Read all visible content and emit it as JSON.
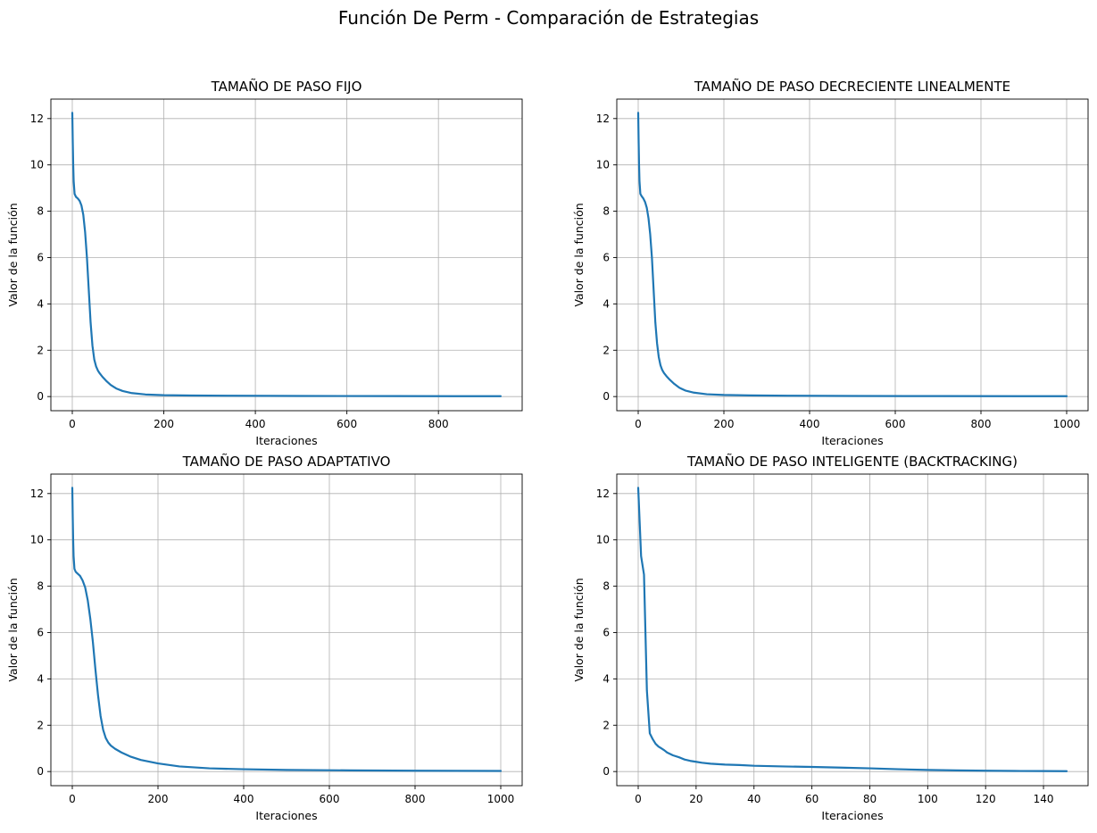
{
  "figure": {
    "suptitle": "Función De Perm - Comparación de Estrategias",
    "line_color": "#1f77b4",
    "grid_color": "#b0b0b0"
  },
  "chart_data": [
    {
      "type": "line",
      "title": "TAMAÑO DE PASO FIJO",
      "xlabel": "Iteraciones",
      "ylabel": "Valor de la función",
      "xlim": [
        -46.8,
        983
      ],
      "ylim": [
        -0.61,
        12.84
      ],
      "xticks": [
        0,
        200,
        400,
        600,
        800
      ],
      "yticks": [
        0,
        2,
        4,
        6,
        8,
        10,
        12
      ],
      "grid": true,
      "series": [
        {
          "x": [
            0,
            1,
            2,
            3,
            5,
            8,
            12,
            16,
            20,
            24,
            28,
            32,
            36,
            40,
            44,
            48,
            52,
            56,
            60,
            66,
            74,
            84,
            96,
            110,
            130,
            160,
            200,
            260,
            350,
            500,
            700,
            936
          ],
          "y": [
            12.25,
            11.0,
            10.0,
            9.3,
            8.75,
            8.62,
            8.55,
            8.45,
            8.25,
            7.85,
            7.1,
            6.0,
            4.6,
            3.2,
            2.2,
            1.6,
            1.3,
            1.12,
            1.0,
            0.85,
            0.68,
            0.5,
            0.35,
            0.24,
            0.15,
            0.09,
            0.06,
            0.045,
            0.035,
            0.025,
            0.02,
            0.015
          ]
        }
      ]
    },
    {
      "type": "line",
      "title": "TAMAÑO DE PASO DECRECIENTE LINEALMENTE",
      "xlabel": "Iteraciones",
      "ylabel": "Valor de la función",
      "xlim": [
        -50,
        1050
      ],
      "ylim": [
        -0.61,
        12.84
      ],
      "xticks": [
        0,
        200,
        400,
        600,
        800,
        1000
      ],
      "yticks": [
        0,
        2,
        4,
        6,
        8,
        10,
        12
      ],
      "grid": true,
      "series": [
        {
          "x": [
            0,
            1,
            2,
            3,
            5,
            8,
            12,
            16,
            20,
            24,
            28,
            32,
            36,
            40,
            44,
            48,
            52,
            56,
            60,
            66,
            74,
            84,
            96,
            110,
            130,
            160,
            200,
            260,
            350,
            500,
            700,
            1000
          ],
          "y": [
            12.25,
            11.0,
            10.0,
            9.3,
            8.75,
            8.65,
            8.55,
            8.4,
            8.15,
            7.7,
            7.0,
            6.0,
            4.6,
            3.2,
            2.3,
            1.7,
            1.35,
            1.15,
            1.02,
            0.88,
            0.72,
            0.55,
            0.38,
            0.26,
            0.17,
            0.1,
            0.07,
            0.05,
            0.035,
            0.025,
            0.02,
            0.015
          ]
        }
      ]
    },
    {
      "type": "line",
      "title": "TAMAÑO DE PASO ADAPTATIVO",
      "xlabel": "Iteraciones",
      "ylabel": "Valor de la función",
      "xlim": [
        -50,
        1050
      ],
      "ylim": [
        -0.61,
        12.84
      ],
      "xticks": [
        0,
        200,
        400,
        600,
        800,
        1000
      ],
      "yticks": [
        0,
        2,
        4,
        6,
        8,
        10,
        12
      ],
      "grid": true,
      "series": [
        {
          "x": [
            0,
            1,
            2,
            3,
            5,
            8,
            12,
            18,
            24,
            30,
            36,
            42,
            48,
            54,
            60,
            66,
            72,
            78,
            84,
            90,
            100,
            115,
            135,
            160,
            200,
            250,
            320,
            400,
            500,
            650,
            800,
            1000
          ],
          "y": [
            12.25,
            11.0,
            10.0,
            9.3,
            8.75,
            8.62,
            8.55,
            8.45,
            8.25,
            7.95,
            7.4,
            6.6,
            5.6,
            4.4,
            3.3,
            2.4,
            1.8,
            1.45,
            1.25,
            1.12,
            0.98,
            0.82,
            0.65,
            0.5,
            0.35,
            0.22,
            0.14,
            0.1,
            0.07,
            0.05,
            0.035,
            0.025
          ]
        }
      ]
    },
    {
      "type": "line",
      "title": "TAMAÑO DE PASO INTELIGENTE (BACKTRACKING)",
      "xlabel": "Iteraciones",
      "ylabel": "Valor de la función",
      "xlim": [
        -7.4,
        155.4
      ],
      "ylim": [
        -0.61,
        12.84
      ],
      "xticks": [
        0,
        20,
        40,
        60,
        80,
        100,
        120,
        140
      ],
      "yticks": [
        0,
        2,
        4,
        6,
        8,
        10,
        12
      ],
      "grid": true,
      "series": [
        {
          "x": [
            0,
            1,
            2,
            3,
            4,
            5,
            6,
            7,
            8,
            9,
            10,
            12,
            14,
            16,
            18,
            20,
            22,
            25,
            30,
            35,
            40,
            50,
            60,
            70,
            80,
            90,
            100,
            110,
            120,
            130,
            140,
            148
          ],
          "y": [
            12.25,
            9.3,
            8.5,
            3.5,
            1.65,
            1.4,
            1.2,
            1.08,
            1.0,
            0.92,
            0.82,
            0.7,
            0.62,
            0.52,
            0.46,
            0.42,
            0.38,
            0.34,
            0.3,
            0.28,
            0.25,
            0.22,
            0.2,
            0.17,
            0.14,
            0.1,
            0.07,
            0.05,
            0.035,
            0.025,
            0.02,
            0.015
          ]
        }
      ]
    }
  ]
}
